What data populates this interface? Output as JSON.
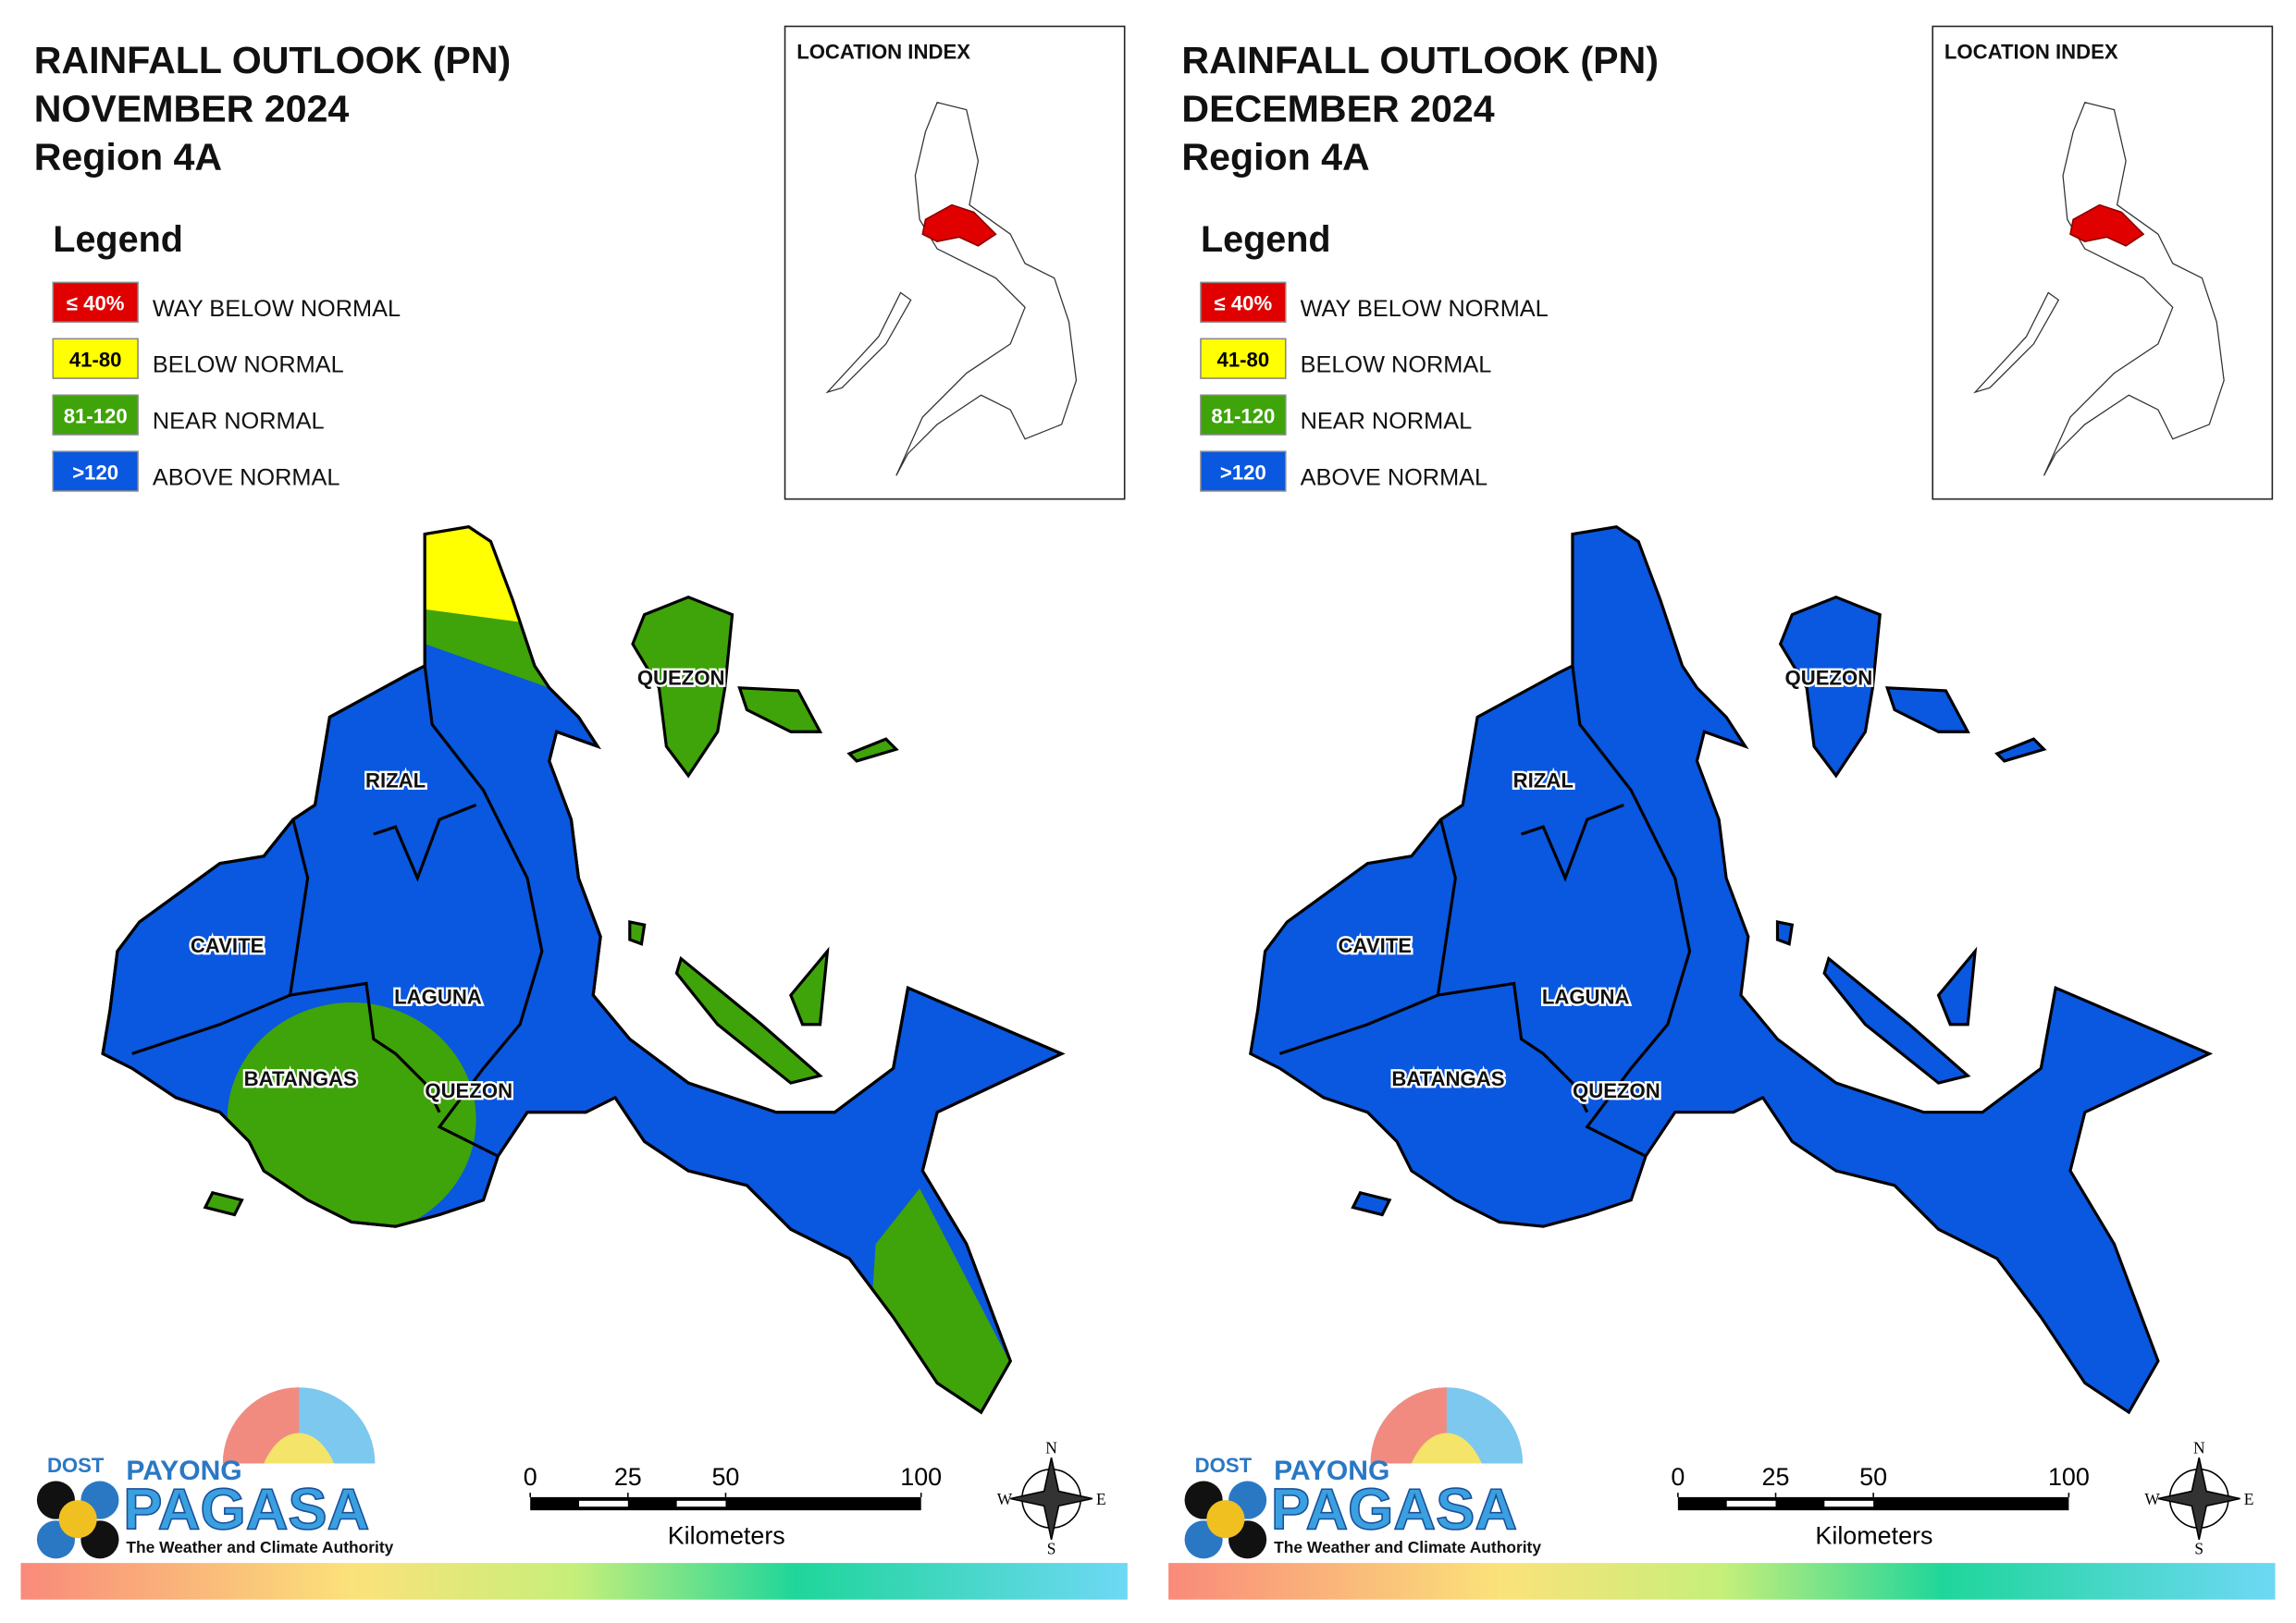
{
  "panels": [
    {
      "title": [
        "RAINFALL OUTLOOK (PN)",
        "NOVEMBER 2024",
        "Region 4A"
      ],
      "legend_title": "Legend",
      "legend": [
        {
          "code": "≤ 40%",
          "label": "WAY BELOW NORMAL",
          "color": "#e00000"
        },
        {
          "code": "41-80",
          "label": "BELOW NORMAL",
          "color": "#ffff00"
        },
        {
          "code": "81-120",
          "label": "NEAR NORMAL",
          "color": "#3fa30a"
        },
        {
          "code": ">120",
          "label": "ABOVE NORMAL",
          "color": "#0a57e0"
        }
      ],
      "inset_title": "LOCATION INDEX",
      "map_labels": [
        "QUEZON",
        "RIZAL",
        "CAVITE",
        "LAGUNA",
        "BATANGAS",
        "QUEZON"
      ],
      "scale": {
        "ticks": [
          0,
          25,
          50,
          100
        ],
        "unit": "Kilometers"
      },
      "compass": [
        "N",
        "E",
        "S",
        "W"
      ],
      "logo": [
        "DOST",
        "PAYONG",
        "PAGASA",
        "The Weather and Climate Authority"
      ]
    },
    {
      "title": [
        "RAINFALL OUTLOOK (PN)",
        "DECEMBER 2024",
        "Region 4A"
      ],
      "legend_title": "Legend",
      "legend": [
        {
          "code": "≤ 40%",
          "label": "WAY BELOW NORMAL",
          "color": "#e00000"
        },
        {
          "code": "41-80",
          "label": "BELOW NORMAL",
          "color": "#ffff00"
        },
        {
          "code": "81-120",
          "label": "NEAR NORMAL",
          "color": "#3fa30a"
        },
        {
          "code": ">120",
          "label": "ABOVE NORMAL",
          "color": "#0a57e0"
        }
      ],
      "inset_title": "LOCATION INDEX",
      "map_labels": [
        "QUEZON",
        "RIZAL",
        "CAVITE",
        "LAGUNA",
        "BATANGAS",
        "QUEZON"
      ],
      "scale": {
        "ticks": [
          0,
          25,
          50,
          100
        ],
        "unit": "Kilometers"
      },
      "compass": [
        "N",
        "E",
        "S",
        "W"
      ],
      "logo": [
        "DOST",
        "PAYONG",
        "PAGASA",
        "The Weather and Climate Authority"
      ]
    }
  ]
}
